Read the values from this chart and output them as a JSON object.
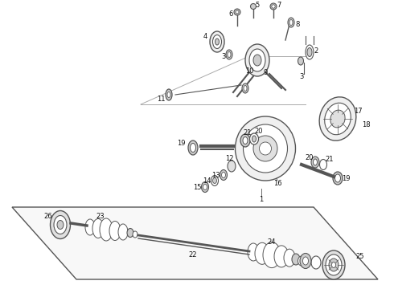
{
  "bg_color": "#ffffff",
  "line_color": "#555555",
  "light_gray": "#cccccc",
  "dark_gray": "#555555",
  "label_fontsize": 6.0
}
